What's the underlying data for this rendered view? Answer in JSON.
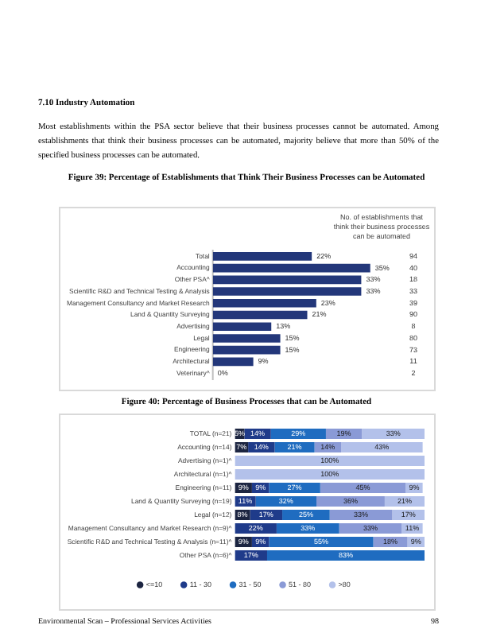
{
  "chart_data": [
    {
      "type": "bar",
      "orientation": "horizontal",
      "title": "Figure 39: Percentage of Establishments that Think Their Business Processes can be Automated",
      "categories": [
        "Total",
        "Accounting",
        "Other PSA^",
        "Scientific R&D and Technical Testing & Analysis",
        "Management Consultancy and Market Research",
        "Land & Quantity Surveying",
        "Advertising",
        "Legal",
        "Engineering",
        "Architectural",
        "Veterinary^"
      ],
      "values": [
        22,
        35,
        33,
        33,
        23,
        21,
        13,
        15,
        15,
        9,
        0
      ],
      "value_labels": [
        "22%",
        "35%",
        "33%",
        "33%",
        "23%",
        "21%",
        "13%",
        "15%",
        "15%",
        "9%",
        "0%"
      ],
      "color": "#23377a",
      "tick_labels": "y",
      "grid": false,
      "legend": false,
      "annotations": [
        "7.10 Industry Automation",
        "Most establishments within the PSA sector believe that their business processes cannot be automated. Among establishments that think their business processes can be automated, majority believe that more than 50% of the specified business processes can be automated.",
        "No. of establishments that think their business processes can be automated",
        "94",
        "40",
        "18",
        "33",
        "39",
        "90",
        "8",
        "80",
        "73",
        "11",
        "2"
      ]
    },
    {
      "type": "bar",
      "orientation": "horizontal",
      "stacked": true,
      "title": "Figure 40: Percentage of Business Processes that can be Automated",
      "categories": [
        "TOTAL (n=21)",
        "Accounting (n=14)",
        "Advertising (n=1)^",
        "Architectural (n=1)^",
        "Engineering (n=11)",
        "Land & Quantity Surveying (n=19)",
        "Legal (n=12)",
        "Management Consultancy and Market Research (n=9)^",
        "Scientific R&D and Technical Testing & Analysis (n=11)^",
        "Other PSA (n=6)^"
      ],
      "series": [
        {
          "name": "<=10",
          "color": "#1c2541",
          "values": [
            5,
            7,
            null,
            null,
            9,
            null,
            8,
            null,
            9,
            null
          ],
          "value_labels": [
            "5%",
            "7%",
            null,
            null,
            "9%",
            null,
            "8%",
            null,
            "9%",
            null
          ]
        },
        {
          "name": "11 - 30",
          "color": "#1f3b8a",
          "values": [
            14,
            14,
            null,
            null,
            9,
            11,
            17,
            22,
            9,
            17
          ],
          "value_labels": [
            "14%",
            "14%",
            null,
            null,
            "9%",
            "11%",
            "17%",
            "22%",
            "9%",
            "17%"
          ]
        },
        {
          "name": "31 - 50",
          "color": "#1f6cc0",
          "values": [
            29,
            21,
            null,
            null,
            27,
            32,
            25,
            33,
            55,
            83
          ],
          "value_labels": [
            "29%",
            "21%",
            null,
            null,
            "27%",
            "32%",
            "25%",
            "33%",
            "55%",
            "83%"
          ]
        },
        {
          "name": "51 - 80",
          "color": "#8a9ad6",
          "values": [
            19,
            14,
            null,
            null,
            45,
            36,
            33,
            33,
            18,
            null
          ],
          "value_labels": [
            "19%",
            "14%",
            null,
            null,
            "45%",
            "36%",
            "33%",
            "33%",
            "18%",
            null
          ]
        },
        {
          "name": ">80",
          "color": "#b3c1ea",
          "values": [
            33,
            43,
            100,
            100,
            9,
            21,
            17,
            11,
            9,
            null
          ],
          "value_labels": [
            "33%",
            "43%",
            "100%",
            "100%",
            "9%",
            "21%",
            "17%",
            "11%",
            "9%",
            null
          ]
        }
      ],
      "xlim": [
        0,
        100
      ],
      "tick_labels": "y",
      "grid": false,
      "legend": "bottom",
      "annotations": [
        "Environmental Scan – Professional Services Activities",
        "98"
      ]
    }
  ]
}
